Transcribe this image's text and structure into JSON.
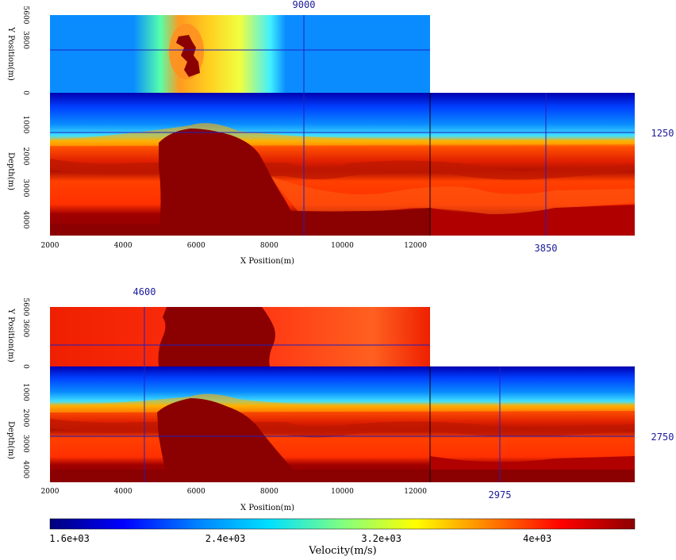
{
  "chart_data": [
    {
      "type": "heatmap",
      "name": "panel-1",
      "x_axis": {
        "label": "X Position(m)",
        "range": [
          2000,
          18000
        ],
        "ticks": [
          "2000",
          "4000",
          "6000",
          "8000",
          "10000",
          "12000"
        ]
      },
      "y_axis": {
        "label": "Y Position(m)",
        "range": [
          0,
          5600
        ],
        "ticks": [
          "5600",
          "3800",
          "0"
        ]
      },
      "z_axis": {
        "label": "Depth(m)",
        "range": [
          0,
          4500
        ],
        "ticks": [
          "1000",
          "2000",
          "3000",
          "4000"
        ]
      },
      "crosshair": {
        "x": "9000",
        "y": "3850",
        "depth": "1250"
      },
      "colorbar": "colorbar.scale"
    },
    {
      "type": "heatmap",
      "name": "panel-2",
      "x_axis": {
        "label": "X Position(m)",
        "range": [
          2000,
          18000
        ],
        "ticks": [
          "2000",
          "4000",
          "6000",
          "8000",
          "10000",
          "12000"
        ]
      },
      "y_axis": {
        "label": "Y Position(m)",
        "range": [
          0,
          5600
        ],
        "ticks": [
          "5600",
          "3600",
          "0"
        ]
      },
      "z_axis": {
        "label": "Depth(m)",
        "range": [
          0,
          4500
        ],
        "ticks": [
          "1000",
          "2000",
          "3000",
          "4000"
        ]
      },
      "crosshair": {
        "x": "4600",
        "y": "2975",
        "depth": "2750"
      },
      "colorbar": "colorbar.scale"
    }
  ],
  "colorbar": {
    "label": "Velocity(m/s)",
    "ticks": [
      "1.6e+03",
      "2.4e+03",
      "3.2e+03",
      "4e+03"
    ],
    "range": [
      1500,
      4500
    ],
    "scale": [
      "#00007a",
      "#0000ff",
      "#0080ff",
      "#00e0ff",
      "#80ff80",
      "#ffff00",
      "#ff8000",
      "#ff0000",
      "#8b0000"
    ]
  }
}
